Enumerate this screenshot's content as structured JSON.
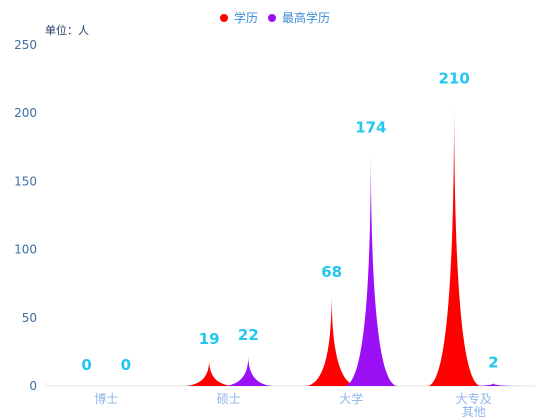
{
  "chart_data": {
    "type": "bar",
    "unit_label": "单位：人",
    "categories": [
      "博士",
      "硕士",
      "大学",
      "大专及其他"
    ],
    "category_lines": [
      [
        "博士"
      ],
      [
        "硕士"
      ],
      [
        "大学"
      ],
      [
        "大专及",
        "其他"
      ]
    ],
    "series": [
      {
        "name": "学历",
        "values": [
          0,
          19,
          68,
          210
        ],
        "color": "#ff0000"
      },
      {
        "name": "最高学历",
        "values": [
          0,
          22,
          174,
          2
        ],
        "color": "#9b10f5"
      }
    ],
    "ylim": [
      0,
      250
    ],
    "yticks": [
      0,
      50,
      100,
      150,
      200,
      250
    ],
    "legend_position": "top-center",
    "grid": false,
    "label_color": "#22c7f0",
    "axis_label_color": "#3d6fa0",
    "category_label_color": "#8fb6e8"
  }
}
